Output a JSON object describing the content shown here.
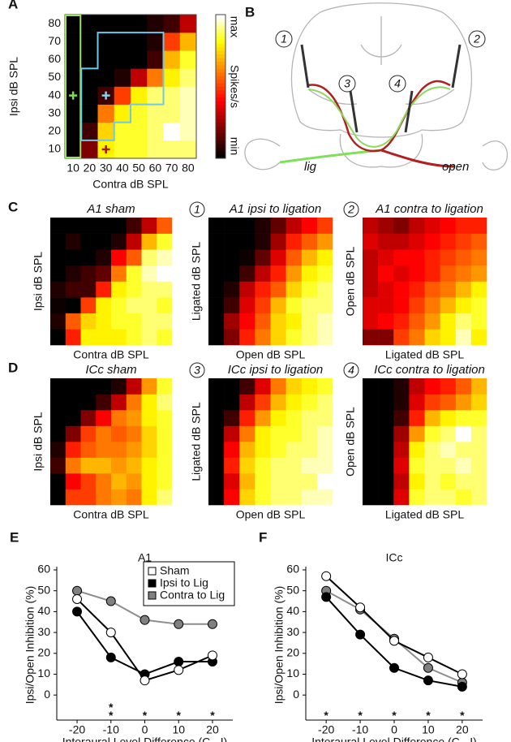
{
  "chart_data": [
    {
      "type": "heatmap",
      "panel": "A",
      "xlabel": "Contra dB SPL",
      "ylabel": "Ipsi dB SPL",
      "xticks": [
        10,
        20,
        30,
        40,
        50,
        60,
        70,
        80
      ],
      "yticks": [
        10,
        20,
        30,
        40,
        50,
        60,
        70,
        80
      ],
      "colorbar": {
        "label": "Spikes/s",
        "max": "max",
        "min": "min"
      },
      "markers": [
        {
          "x": 10,
          "y": 40,
          "color": "#7ee04a"
        },
        {
          "x": 30,
          "y": 40,
          "color": "#7fd3f0"
        },
        {
          "x": 30,
          "y": 10,
          "color": "#b01515"
        }
      ],
      "values": [
        [
          0,
          0.2,
          0.8,
          0.85,
          0.85,
          0.9,
          0.9,
          0.9
        ],
        [
          0,
          0.1,
          0.75,
          0.85,
          0.85,
          0.9,
          1,
          0.95
        ],
        [
          0,
          0,
          0.6,
          0.8,
          0.85,
          0.9,
          0.9,
          0.95
        ],
        [
          0,
          0,
          0.1,
          0.5,
          0.8,
          0.9,
          0.9,
          0.95
        ],
        [
          0,
          0,
          0,
          0.05,
          0.3,
          0.6,
          0.8,
          0.9
        ],
        [
          0,
          0,
          0,
          0,
          0,
          0.1,
          0.7,
          0.85
        ],
        [
          0,
          0,
          0,
          0,
          0,
          0.05,
          0.5,
          0.7
        ],
        [
          0,
          0,
          0,
          0,
          0,
          0.05,
          0.1,
          0.3
        ]
      ]
    },
    {
      "type": "heatmap",
      "panel": "C",
      "title": "A1 sham",
      "xlabel": "Contra dB SPL",
      "ylabel": "Ipsi dB SPL",
      "values": [
        [
          0,
          0.45,
          0.8,
          0.8,
          0.8,
          0.85,
          0.9,
          0.85
        ],
        [
          0.05,
          0.55,
          0.75,
          0.8,
          0.85,
          0.85,
          0.9,
          0.9
        ],
        [
          0.02,
          0,
          0.5,
          0.8,
          0.85,
          0.9,
          0.9,
          0.85
        ],
        [
          0.05,
          0.1,
          0.1,
          0.45,
          0.8,
          0.85,
          0.9,
          0.9
        ],
        [
          0,
          0.05,
          0.1,
          0.15,
          0.6,
          0.85,
          0.95,
          1
        ],
        [
          0,
          0,
          0,
          0.05,
          0.4,
          0.55,
          0.9,
          0.95
        ],
        [
          0,
          0.05,
          0,
          0,
          0.05,
          0.3,
          0.7,
          0.85
        ],
        [
          0,
          0,
          0,
          0,
          0,
          0.1,
          0.3,
          0.55
        ]
      ]
    },
    {
      "type": "heatmap",
      "badge": "1",
      "title": "A1 ipsi to ligation",
      "xlabel": "Open dB SPL",
      "ylabel": "Ligated dB SPL",
      "values": [
        [
          0,
          0.2,
          0.45,
          0.6,
          0.75,
          0.85,
          0.9,
          0.95
        ],
        [
          0,
          0.25,
          0.4,
          0.55,
          0.75,
          0.8,
          0.9,
          0.95
        ],
        [
          0,
          0.1,
          0.35,
          0.5,
          0.7,
          0.85,
          0.9,
          0.9
        ],
        [
          0,
          0.05,
          0.3,
          0.45,
          0.55,
          0.75,
          0.85,
          0.9
        ],
        [
          0,
          0,
          0.1,
          0.3,
          0.45,
          0.65,
          0.8,
          0.85
        ],
        [
          0,
          0,
          0.02,
          0.15,
          0.35,
          0.55,
          0.7,
          0.8
        ],
        [
          0,
          0,
          0,
          0.05,
          0.25,
          0.45,
          0.55,
          0.65
        ],
        [
          0,
          0,
          0,
          0.05,
          0.15,
          0.3,
          0.4,
          0.5
        ]
      ]
    },
    {
      "type": "heatmap",
      "badge": "2",
      "title": "A1 contra to ligation",
      "xlabel": "Ligated dB SPL",
      "ylabel": "Open dB SPL",
      "values": [
        [
          0.2,
          0.2,
          0.5,
          0.6,
          0.75,
          0.8,
          0.95,
          0.8
        ],
        [
          0.35,
          0.4,
          0.45,
          0.55,
          0.65,
          0.8,
          0.9,
          0.85
        ],
        [
          0.35,
          0.35,
          0.4,
          0.5,
          0.6,
          0.7,
          0.8,
          0.85
        ],
        [
          0.3,
          0.35,
          0.4,
          0.45,
          0.55,
          0.6,
          0.7,
          0.8
        ],
        [
          0.3,
          0.4,
          0.35,
          0.4,
          0.45,
          0.55,
          0.6,
          0.65
        ],
        [
          0.3,
          0.35,
          0.4,
          0.4,
          0.45,
          0.5,
          0.55,
          0.6
        ],
        [
          0.35,
          0.3,
          0.3,
          0.35,
          0.4,
          0.45,
          0.5,
          0.55
        ],
        [
          0.3,
          0.25,
          0.2,
          0.3,
          0.35,
          0.4,
          0.45,
          0.45
        ]
      ]
    },
    {
      "type": "heatmap",
      "panel": "D",
      "title": "ICc sham",
      "xlabel": "Contra dB SPL",
      "ylabel": "Ipsi dB SPL",
      "values": [
        [
          0,
          0.5,
          0.5,
          0.6,
          0.65,
          0.6,
          0.8,
          0.9
        ],
        [
          0,
          0.4,
          0.5,
          0.6,
          0.7,
          0.65,
          0.8,
          0.85
        ],
        [
          0.1,
          0.6,
          0.7,
          0.7,
          0.65,
          0.7,
          0.8,
          0.85
        ],
        [
          0.05,
          0.45,
          0.55,
          0.6,
          0.6,
          0.65,
          0.75,
          0.85
        ],
        [
          0,
          0.2,
          0.5,
          0.6,
          0.55,
          0.6,
          0.75,
          0.85
        ],
        [
          0,
          0,
          0.2,
          0.4,
          0.6,
          0.65,
          0.8,
          0.85
        ],
        [
          0,
          0,
          0,
          0.1,
          0.3,
          0.6,
          0.8,
          0.9
        ],
        [
          0,
          0,
          0,
          0,
          0.05,
          0.3,
          0.65,
          0.85
        ]
      ]
    },
    {
      "type": "heatmap",
      "badge": "3",
      "title": "ICc ipsi to ligation",
      "xlabel": "Open dB SPL",
      "ylabel": "Ligated dB SPL",
      "values": [
        [
          0,
          0.4,
          0.75,
          0.85,
          0.9,
          0.9,
          0.95,
          0.95
        ],
        [
          0,
          0.35,
          0.7,
          0.85,
          0.9,
          0.9,
          0.9,
          1
        ],
        [
          0,
          0.45,
          0.75,
          0.85,
          0.9,
          0.9,
          0.95,
          0.95
        ],
        [
          0,
          0.4,
          0.7,
          0.8,
          0.85,
          0.9,
          0.9,
          0.95
        ],
        [
          0,
          0.3,
          0.6,
          0.8,
          0.85,
          0.85,
          0.9,
          0.95
        ],
        [
          0,
          0.1,
          0.45,
          0.65,
          0.8,
          0.85,
          0.9,
          0.9
        ],
        [
          0,
          0,
          0.3,
          0.5,
          0.7,
          0.8,
          0.85,
          0.9
        ],
        [
          0,
          0,
          0.1,
          0.35,
          0.6,
          0.75,
          0.8,
          0.85
        ]
      ]
    },
    {
      "type": "heatmap",
      "badge": "4",
      "title": "ICc contra to ligation",
      "xlabel": "Ligated dB SPL",
      "ylabel": "Open dB SPL",
      "values": [
        [
          0,
          0,
          0.35,
          0.85,
          0.9,
          0.9,
          0.85,
          0.9
        ],
        [
          0,
          0,
          0.3,
          0.8,
          0.9,
          0.85,
          0.9,
          0.9
        ],
        [
          0,
          0,
          0.35,
          0.85,
          0.9,
          0.9,
          0.95,
          0.9
        ],
        [
          0,
          0,
          0.3,
          0.8,
          0.9,
          0.95,
          0.9,
          0.9
        ],
        [
          0,
          0,
          0.25,
          0.65,
          0.85,
          0.9,
          1,
          0.9
        ],
        [
          0,
          0,
          0.1,
          0.45,
          0.7,
          0.8,
          0.85,
          0.85
        ],
        [
          0,
          0,
          0.05,
          0.35,
          0.5,
          0.55,
          0.65,
          0.75
        ],
        [
          0,
          0,
          0.05,
          0.3,
          0.4,
          0.45,
          0.55,
          0.7
        ]
      ]
    },
    {
      "type": "line",
      "panel": "E",
      "title": "A1",
      "xlabel": "Interaural Level Difference (C - I)",
      "ylabel": "Ipsi/Open Inhibition (%)",
      "x": [
        -20,
        -10,
        0,
        10,
        20
      ],
      "xlim": [
        -26,
        26
      ],
      "xticks": [
        -20,
        -10,
        0,
        10,
        20
      ],
      "ylim": [
        -12,
        60
      ],
      "yticks": [
        0,
        10,
        20,
        30,
        40,
        50,
        60
      ],
      "legend": "top-right",
      "series": [
        {
          "name": "Sham",
          "color": "#ffffff",
          "line_color": "#000000",
          "values": [
            46,
            30,
            7,
            12,
            19
          ]
        },
        {
          "name": "Ipsi to Lig",
          "color": "#000000",
          "line_color": "#000000",
          "values": [
            40,
            18,
            10,
            16,
            16
          ]
        },
        {
          "name": "Contra to Lig",
          "color": "#808080",
          "line_color": "#8c8c8c",
          "values": [
            50,
            45,
            36,
            34,
            34
          ]
        }
      ],
      "stars": [
        {
          "x": -10,
          "label": "*",
          "color": "#000000",
          "row": 0
        },
        {
          "x": -10,
          "label": "*",
          "color": "#8c8c8c",
          "row": 1
        },
        {
          "x": 0,
          "label": "*",
          "color": "#8c8c8c",
          "row": 1
        },
        {
          "x": 10,
          "label": "*",
          "color": "#8c8c8c",
          "row": 1
        },
        {
          "x": 20,
          "label": "*",
          "color": "#8c8c8c",
          "row": 1
        }
      ]
    },
    {
      "type": "line",
      "panel": "F",
      "title": "ICc",
      "xlabel": "Interaural Level Difference (C - I)",
      "ylabel": "Ipsi/Open Inhibition (%)",
      "x": [
        -20,
        -10,
        0,
        10,
        20
      ],
      "xlim": [
        -26,
        26
      ],
      "xticks": [
        -20,
        -10,
        0,
        10,
        20
      ],
      "ylim": [
        -12,
        60
      ],
      "yticks": [
        0,
        10,
        20,
        30,
        40,
        50,
        60
      ],
      "series": [
        {
          "name": "Sham",
          "color": "#ffffff",
          "line_color": "#000000",
          "values": [
            57,
            42,
            26,
            18,
            10
          ]
        },
        {
          "name": "Ipsi to Lig",
          "color": "#000000",
          "line_color": "#000000",
          "values": [
            47,
            29,
            13,
            7,
            4
          ]
        },
        {
          "name": "Contra to Lig",
          "color": "#808080",
          "line_color": "#8c8c8c",
          "values": [
            50,
            41,
            27,
            13,
            6
          ]
        }
      ],
      "stars": [
        {
          "x": -20,
          "label": "*",
          "color": "#000000",
          "row": 1
        },
        {
          "x": -10,
          "label": "*",
          "color": "#000000",
          "row": 1
        },
        {
          "x": 0,
          "label": "*",
          "color": "#000000",
          "row": 1
        },
        {
          "x": 10,
          "label": "*",
          "color": "#000000",
          "row": 1
        },
        {
          "x": 20,
          "label": "*",
          "color": "#000000",
          "row": 1
        }
      ]
    }
  ],
  "diagram": {
    "panel": "B",
    "labels": [
      "1",
      "2",
      "3",
      "4"
    ],
    "lig": "lig",
    "open": "open"
  }
}
